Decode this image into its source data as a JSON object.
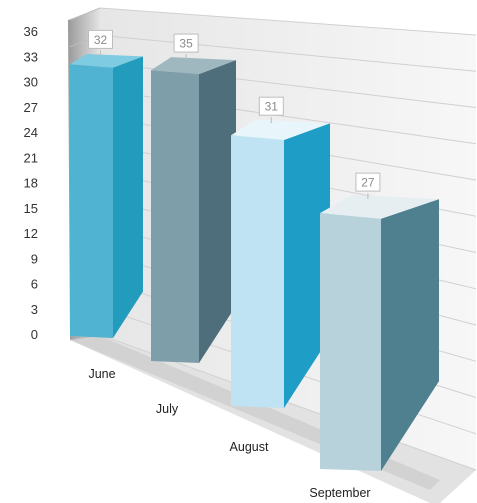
{
  "chart_data": {
    "type": "bar",
    "categories": [
      "June",
      "July",
      "August",
      "September"
    ],
    "values": [
      32,
      35,
      31,
      27
    ],
    "ylim": [
      0,
      36
    ],
    "yticks": [
      0,
      3,
      6,
      9,
      12,
      15,
      18,
      21,
      24,
      27,
      30,
      33,
      36
    ],
    "grid": true,
    "legend": "none",
    "data_labels": true,
    "colors": {
      "front": [
        "#4fb3d1",
        "#7e9ea9",
        "#bfe3f3",
        "#b8d2dc"
      ],
      "side": [
        "#239bbd",
        "#4d6e7a",
        "#1e9dc6",
        "#4f8090"
      ],
      "top": [
        "#7ecbe2",
        "#9fb8c0",
        "#e8f6fc",
        "#e6eef2"
      ]
    }
  }
}
